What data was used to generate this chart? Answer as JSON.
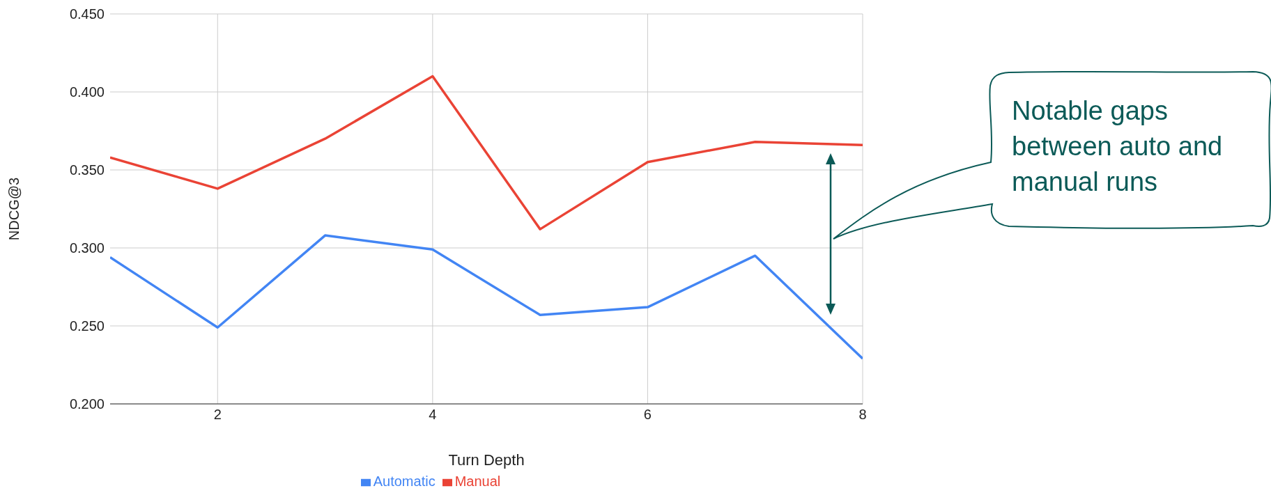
{
  "chart_data": {
    "type": "line",
    "xlabel": "Turn Depth",
    "ylabel": "NDCG@3",
    "x": [
      1,
      2,
      3,
      4,
      5,
      6,
      7,
      8
    ],
    "series": [
      {
        "name": "Automatic",
        "color": "#4285f4",
        "values": [
          0.294,
          0.249,
          0.308,
          0.299,
          0.257,
          0.262,
          0.295,
          0.229
        ]
      },
      {
        "name": "Manual",
        "color": "#ea4335",
        "values": [
          0.358,
          0.338,
          0.37,
          0.41,
          0.312,
          0.355,
          0.368,
          0.366
        ]
      }
    ],
    "xlim": [
      1,
      8
    ],
    "xticks": [
      2,
      4,
      6,
      8
    ],
    "ylim": [
      0.2,
      0.45
    ],
    "yticks": [
      {
        "value": 0.2,
        "label": "0.200"
      },
      {
        "value": 0.25,
        "label": "0.250"
      },
      {
        "value": 0.3,
        "label": "0.300"
      },
      {
        "value": 0.35,
        "label": "0.350"
      },
      {
        "value": 0.4,
        "label": "0.400"
      },
      {
        "value": 0.45,
        "label": "0.450"
      }
    ],
    "grid": true,
    "legend": "bottom",
    "marker": "none",
    "line_style": "solid",
    "annotations": [
      "Notable gaps between auto and manual runs"
    ]
  }
}
